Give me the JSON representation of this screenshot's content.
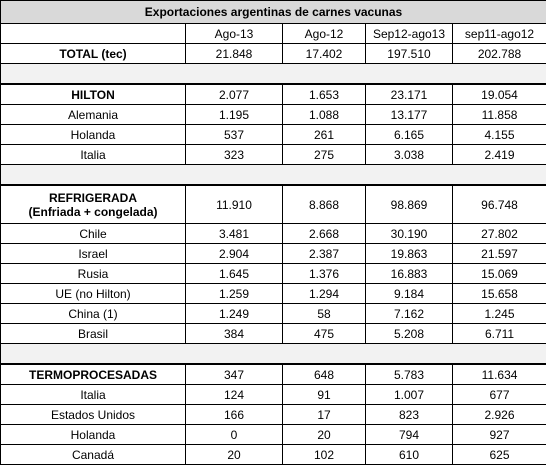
{
  "title": "Exportaciones argentinas de carnes vacunas",
  "columns": [
    "Ago-13",
    "Ago-12",
    "Sep12-ago13",
    "sep11-ago12"
  ],
  "total": {
    "label": "TOTAL (tec)",
    "values": [
      "21.848",
      "17.402",
      "197.510",
      "202.788"
    ]
  },
  "sections": [
    {
      "label": "HILTON",
      "values": [
        "2.077",
        "1.653",
        "23.171",
        "19.054"
      ],
      "rows": [
        {
          "label": "Alemania",
          "values": [
            "1.195",
            "1.088",
            "13.177",
            "11.858"
          ]
        },
        {
          "label": "Holanda",
          "values": [
            "537",
            "261",
            "6.165",
            "4.155"
          ]
        },
        {
          "label": "Italia",
          "values": [
            "323",
            "275",
            "3.038",
            "2.419"
          ]
        }
      ]
    },
    {
      "label": "REFRIGERADA",
      "note": "(Enfriada + congelada)",
      "values": [
        "11.910",
        "8.868",
        "98.869",
        "96.748"
      ],
      "rows": [
        {
          "label": "Chile",
          "values": [
            "3.481",
            "2.668",
            "30.190",
            "27.802"
          ]
        },
        {
          "label": "Israel",
          "values": [
            "2.904",
            "2.387",
            "19.863",
            "21.597"
          ]
        },
        {
          "label": "Rusia",
          "values": [
            "1.645",
            "1.376",
            "16.883",
            "15.069"
          ]
        },
        {
          "label": "UE (no Hilton)",
          "values": [
            "1.259",
            "1.294",
            "9.184",
            "15.658"
          ]
        },
        {
          "label": "China (1)",
          "values": [
            "1.249",
            "58",
            "7.162",
            "1.245"
          ]
        },
        {
          "label": "Brasil",
          "values": [
            "384",
            "475",
            "5.208",
            "6.711"
          ]
        }
      ]
    },
    {
      "label": "TERMOPROCESADAS",
      "values": [
        "347",
        "648",
        "5.783",
        "11.634"
      ],
      "rows": [
        {
          "label": "Italia",
          "values": [
            "124",
            "91",
            "1.007",
            "677"
          ]
        },
        {
          "label": "Estados Unidos",
          "values": [
            "166",
            "17",
            "823",
            "2.926"
          ]
        },
        {
          "label": "Holanda",
          "values": [
            "0",
            "20",
            "794",
            "927"
          ]
        },
        {
          "label": "Canadá",
          "values": [
            "20",
            "102",
            "610",
            "625"
          ]
        }
      ]
    }
  ]
}
